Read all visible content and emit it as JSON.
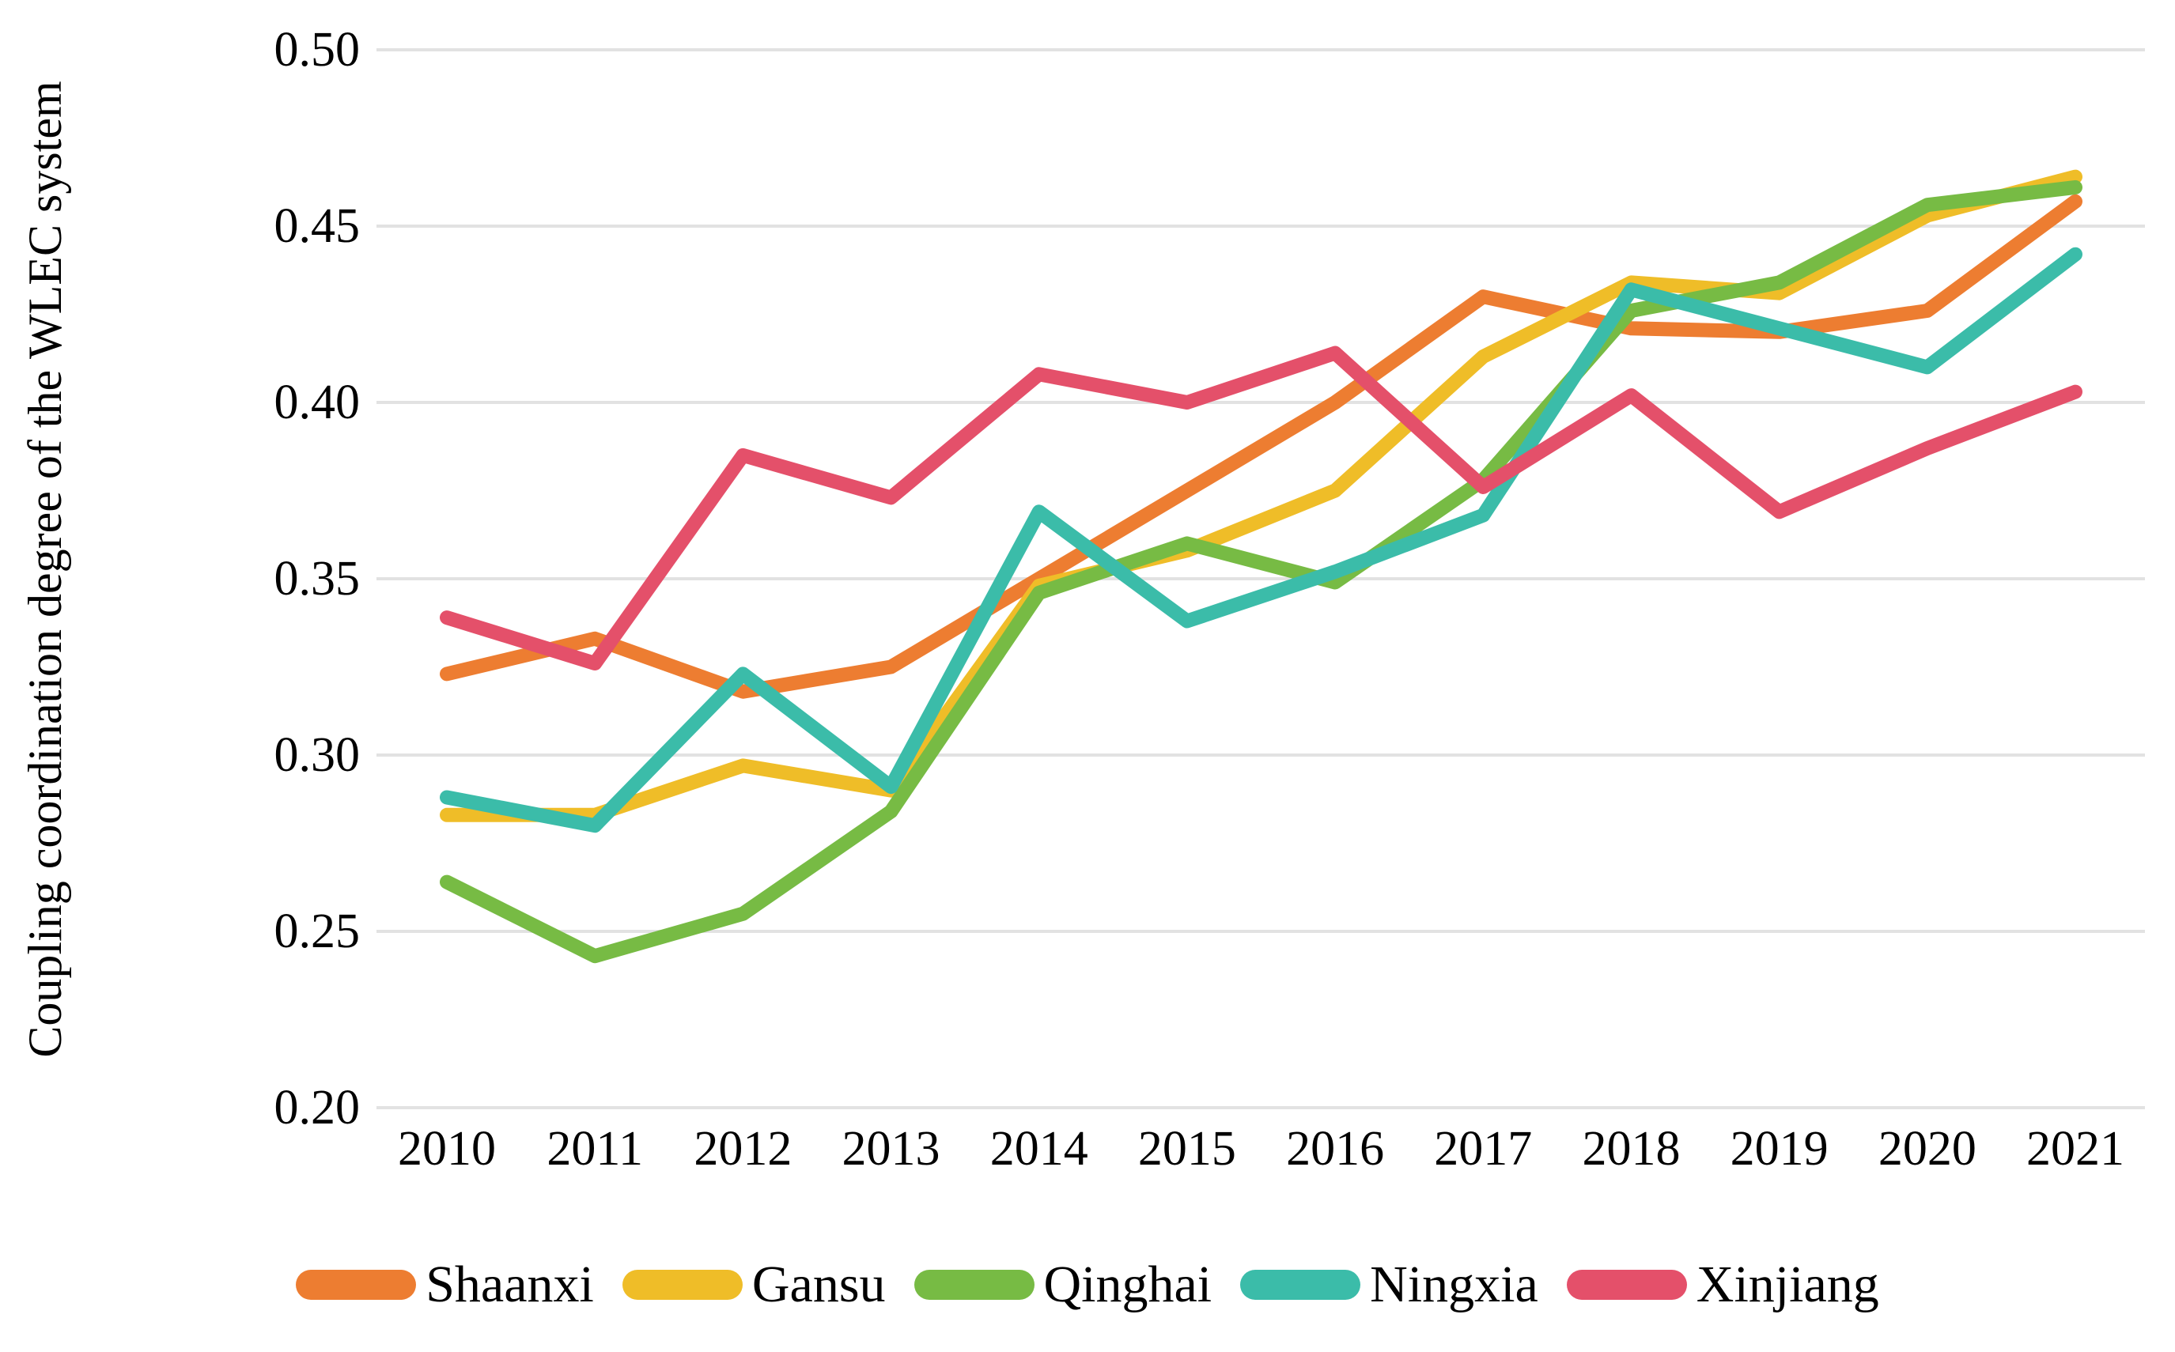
{
  "chart_data": {
    "type": "line",
    "title": "",
    "ylabel": "Coupling coordination degree of the WLEC system",
    "xlabel": "",
    "x": [
      "2010",
      "2011",
      "2012",
      "2013",
      "2014",
      "2015",
      "2016",
      "2017",
      "2018",
      "2019",
      "2020",
      "2021"
    ],
    "ylim": [
      0.2,
      0.5
    ],
    "ytick_step": 0.05,
    "yticks": [
      "0.50",
      "0.45",
      "0.40",
      "0.35",
      "0.30",
      "0.25",
      "0.20"
    ],
    "grid": "horizontal-only",
    "legend_position": "bottom",
    "series": [
      {
        "name": "Shaanxi",
        "color": "#ED7D31",
        "values": [
          0.323,
          0.333,
          0.318,
          0.325,
          0.35,
          0.375,
          0.4,
          0.43,
          0.421,
          0.42,
          0.426,
          0.457
        ]
      },
      {
        "name": "Gansu",
        "color": "#EFBD28",
        "values": [
          0.283,
          0.283,
          0.297,
          0.29,
          0.348,
          0.358,
          0.375,
          0.413,
          0.434,
          0.431,
          0.453,
          0.464
        ]
      },
      {
        "name": "Qinghai",
        "color": "#77BB44",
        "values": [
          0.264,
          0.243,
          0.255,
          0.284,
          0.346,
          0.36,
          0.349,
          0.378,
          0.426,
          0.434,
          0.456,
          0.461
        ]
      },
      {
        "name": "Ningxia",
        "color": "#3BBCA9",
        "values": [
          0.288,
          0.28,
          0.323,
          0.291,
          0.369,
          0.338,
          0.352,
          0.368,
          0.432,
          0.421,
          0.41,
          0.442
        ]
      },
      {
        "name": "Xinjiang",
        "color": "#E4506A",
        "values": [
          0.339,
          0.326,
          0.385,
          0.373,
          0.408,
          0.4,
          0.414,
          0.376,
          0.402,
          0.369,
          0.387,
          0.403
        ]
      }
    ]
  },
  "colors": {
    "background": "#FFFFFF",
    "gridline": "#E2E2E2",
    "text": "#000000"
  }
}
